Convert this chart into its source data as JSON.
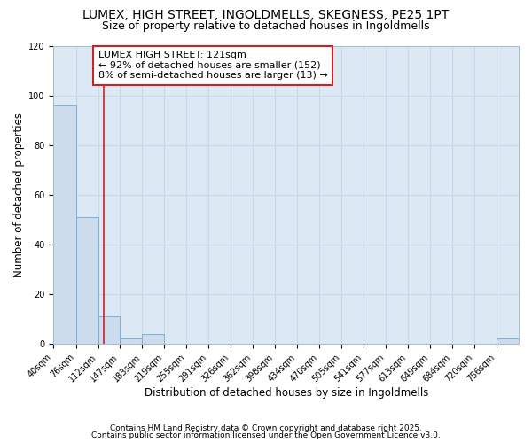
{
  "title_line1": "LUMEX, HIGH STREET, INGOLDMELLS, SKEGNESS, PE25 1PT",
  "title_line2": "Size of property relative to detached houses in Ingoldmells",
  "xlabel": "Distribution of detached houses by size in Ingoldmells",
  "ylabel": "Number of detached properties",
  "footnote1": "Contains HM Land Registry data © Crown copyright and database right 2025.",
  "footnote2": "Contains public sector information licensed under the Open Government Licence v3.0.",
  "annotation_line1": "LUMEX HIGH STREET: 121sqm",
  "annotation_line2": "← 92% of detached houses are smaller (152)",
  "annotation_line3": "8% of semi-detached houses are larger (13) →",
  "bin_edges": [
    40,
    76,
    112,
    147,
    183,
    219,
    255,
    291,
    326,
    362,
    398,
    434,
    470,
    505,
    541,
    577,
    613,
    649,
    684,
    720,
    756,
    792
  ],
  "bin_labels": [
    "40sqm",
    "76sqm",
    "112sqm",
    "147sqm",
    "183sqm",
    "219sqm",
    "255sqm",
    "291sqm",
    "326sqm",
    "362sqm",
    "398sqm",
    "434sqm",
    "470sqm",
    "505sqm",
    "541sqm",
    "577sqm",
    "613sqm",
    "649sqm",
    "684sqm",
    "720sqm",
    "756sqm"
  ],
  "values": [
    96,
    51,
    11,
    2,
    4,
    0,
    0,
    0,
    0,
    0,
    0,
    0,
    0,
    0,
    0,
    0,
    0,
    0,
    0,
    0,
    2
  ],
  "bar_color": "#ccdcec",
  "bar_edge_color": "#7ab0d8",
  "vline_x": 121,
  "vline_color": "#cc2222",
  "annotation_box_color": "#cc2222",
  "ylim": [
    0,
    120
  ],
  "yticks": [
    0,
    20,
    40,
    60,
    80,
    100,
    120
  ],
  "grid_color": "#c8d8e8",
  "bg_color": "#dce8f4",
  "title_fontsize": 10,
  "subtitle_fontsize": 9,
  "axis_label_fontsize": 8.5,
  "tick_fontsize": 7,
  "annotation_fontsize": 8,
  "ylabel_fontsize": 8.5
}
